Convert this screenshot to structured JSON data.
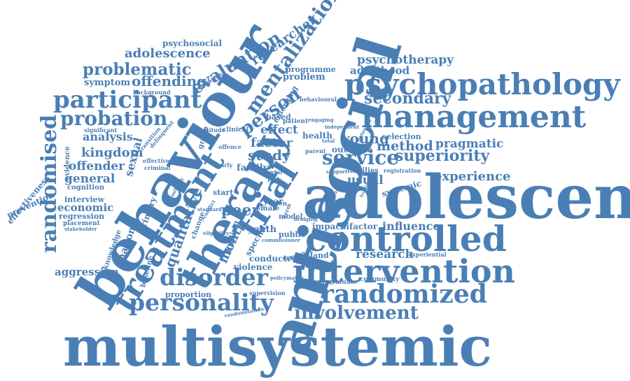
{
  "cloud": {
    "color": "#4a7fb5",
    "background": "#ffffff",
    "words": {
      "multisystemic": "multisystemic",
      "adolescent": "adolescent",
      "antisocial": "antisocial",
      "behaviour": "behaviour",
      "therapy": "therapy",
      "treatment": "treatment",
      "trial": "trial",
      "controlled": "controlled",
      "intervention": "intervention",
      "management": "management",
      "psychopathology": "psychopathology",
      "randomized": "randomized",
      "randomised": "randomised",
      "personality": "personality",
      "disorder": "disorder",
      "involvement": "involvement",
      "participant": "participant",
      "probation": "probation",
      "problematic": "problematic",
      "evaluation": "evaluation",
      "mentalization": "mentalization",
      "researcher": "researcher",
      "person": "person",
      "service": "service",
      "superiority": "superiority",
      "secondary": "secondary",
      "offending": "offending",
      "adolescence": "adolescence",
      "psychotherapy": "psychotherapy",
      "adulthood": "adulthood",
      "kingdom": "kingdom",
      "offender": "offender",
      "general": "general",
      "analysis": "analysis",
      "sexual": "sexual",
      "economic": "economic",
      "aggression": "aggression",
      "qualitative": "qualitative",
      "national": "national",
      "month": "month",
      "peer": "peer",
      "young": "young",
      "method": "method",
      "pragmatic": "pragmatic",
      "experience": "experience",
      "systemic": "systemic",
      "research": "research",
      "influence": "influence",
      "study": "study",
      "factor": "factor",
      "effect": "effect",
      "outcome": "outcome",
      "usual": "usual",
      "families": "families",
      "bifactor": "bifactor",
      "impact": "impact",
      "youth": "youth",
      "violence": "violence",
      "conduct": "conduct",
      "england": "england",
      "measure": "measure",
      "evaluate": "evaluate",
      "community": "community",
      "effectiveness": "effectiveness",
      "prevention": "prevention",
      "symptom": "symptom",
      "psychosocial": "psychosocial",
      "programme": "programme",
      "problem": "problem",
      "emerging": "emerging",
      "health": "health",
      "selection": "selection",
      "regression": "regression",
      "interview": "interview",
      "cognition": "cognition",
      "evidence": "evidence",
      "baseline": "baseline",
      "proportion": "proportion",
      "knowledge": "knowledge",
      "primary": "primary",
      "stakeholder": "stakeholder",
      "placement": "placement",
      "significant": "significant",
      "transition": "transition",
      "delinquent": "delinquent",
      "criminal": "criminal",
      "effective": "effective",
      "background": "background",
      "association": "association",
      "attitude": "attitude",
      "clinical": "clinical",
      "group": "group",
      "supervision": "supervision",
      "policymaker": "policymaker",
      "experiential": "experiential",
      "registration": "registration",
      "difference": "difference",
      "public": "public",
      "model": "model",
      "report": "report",
      "family": "family",
      "finding": "finding",
      "specific": "specific",
      "change": "change",
      "start": "start",
      "year": "year",
      "male": "male",
      "teen": "teen",
      "term": "term",
      "mental": "mental",
      "risk": "risk",
      "based": "based",
      "patient": "patient",
      "parent": "parent",
      "offence": "offence",
      "engaging": "engaging",
      "behavioural": "behavioural",
      "independent": "independent",
      "early": "early",
      "standard": "standard",
      "feasibility": "feasibility",
      "randomisation": "randomisation",
      "commissioner": "commissioner",
      "eligibility": "eligibility",
      "conflict": "conflict",
      "traditional": "traditional",
      "potential": "potential",
      "bridging": "bridging",
      "support": "support",
      "quality": "quality",
      "total": "total"
    }
  }
}
